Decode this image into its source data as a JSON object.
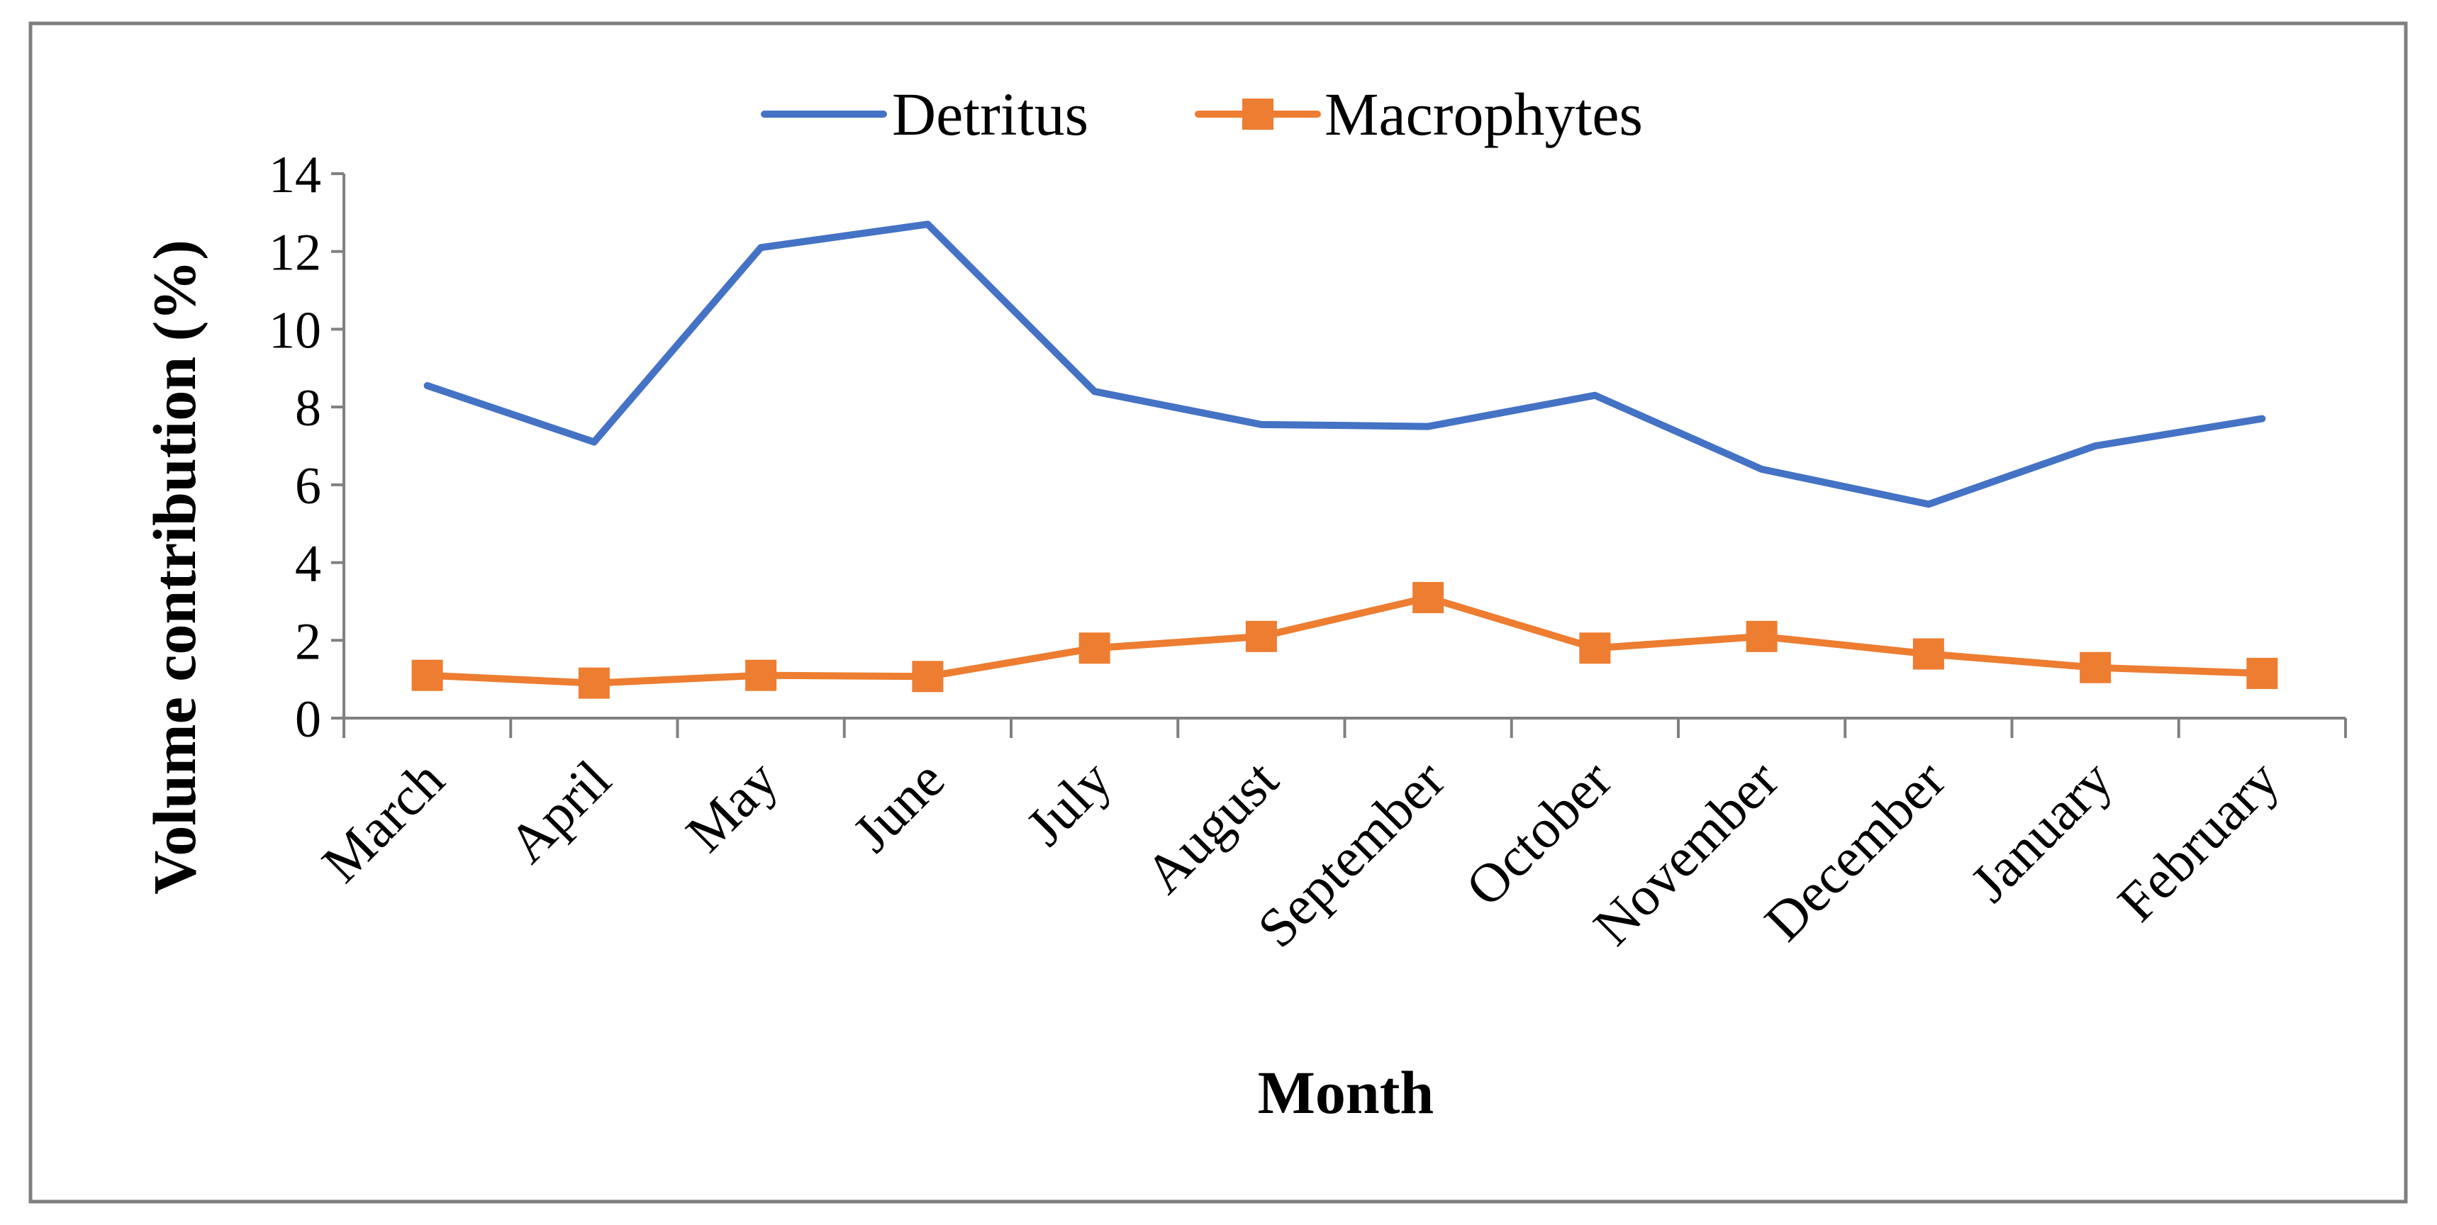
{
  "chart_data": {
    "type": "line",
    "title": "",
    "xlabel": "Month",
    "ylabel": "Volume contribution (%)",
    "categories": [
      "March",
      "April",
      "May",
      "June",
      "July",
      "August",
      "September",
      "October",
      "November",
      "December",
      "January",
      "February"
    ],
    "ylim": [
      0,
      14
    ],
    "y_ticks": [
      0,
      2,
      4,
      6,
      8,
      10,
      12,
      14
    ],
    "grid": false,
    "legend_position": "top-center",
    "series": [
      {
        "name": "Detritus",
        "color": "#4472C4",
        "marker": "none",
        "values": [
          8.55,
          7.1,
          12.1,
          12.7,
          8.4,
          7.55,
          7.5,
          8.3,
          6.4,
          5.5,
          7.0,
          7.7
        ]
      },
      {
        "name": "Macrophytes",
        "color": "#ED7D31",
        "marker": "square",
        "values": [
          1.1,
          0.9,
          1.1,
          1.07,
          1.8,
          2.1,
          3.1,
          1.8,
          2.1,
          1.65,
          1.3,
          1.15
        ]
      }
    ]
  },
  "frame_color": "#7f7f7f",
  "axis_color": "#808080"
}
